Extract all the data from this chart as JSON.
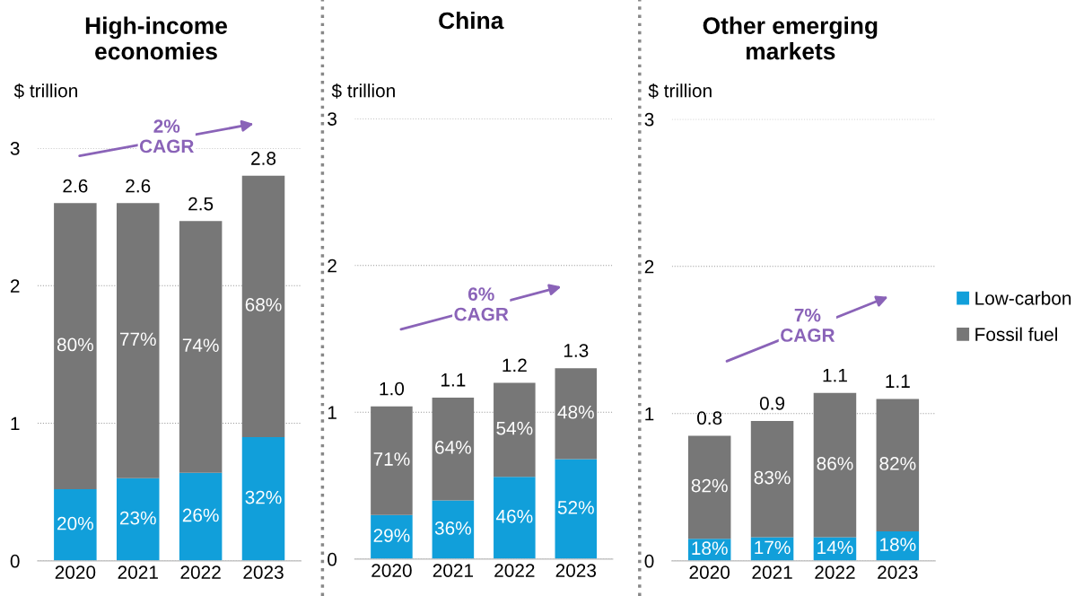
{
  "chart_data": [
    {
      "type": "bar",
      "title": "High-income\neconomies",
      "ylabel": "$ trillion",
      "categories": [
        "2020",
        "2021",
        "2022",
        "2023"
      ],
      "stacked": true,
      "ylim": [
        0,
        3
      ],
      "yticks": [
        0,
        1,
        2,
        3
      ],
      "grid": "y",
      "series": [
        {
          "color": "#119fda",
          "values": [
            0.52,
            0.6,
            0.64,
            0.9
          ]
        },
        {
          "color": "#777777",
          "values": [
            2.08,
            2.0,
            1.83,
            1.9
          ]
        }
      ],
      "totals": [
        "2.6",
        "2.6",
        "2.5",
        "2.8"
      ],
      "annotations": [
        "2%\nCAGR",
        "20%",
        "23%",
        "26%",
        "32%",
        "80%",
        "77%",
        "74%",
        "68%"
      ]
    },
    {
      "type": "bar",
      "title": "China",
      "ylabel": "$ trillion",
      "categories": [
        "2020",
        "2021",
        "2022",
        "2023"
      ],
      "stacked": true,
      "ylim": [
        0,
        3
      ],
      "yticks": [
        0,
        1,
        2,
        3
      ],
      "grid": "y",
      "series": [
        {
          "color": "#119fda",
          "values": [
            0.3,
            0.4,
            0.56,
            0.68
          ]
        },
        {
          "color": "#777777",
          "values": [
            0.74,
            0.7,
            0.64,
            0.62
          ]
        }
      ],
      "totals": [
        "1.0",
        "1.1",
        "1.2",
        "1.3"
      ],
      "annotations": [
        "6%\nCAGR",
        "29%",
        "36%",
        "46%",
        "52%",
        "71%",
        "64%",
        "54%",
        "48%"
      ]
    },
    {
      "type": "bar",
      "title": "Other emerging\nmarkets",
      "ylabel": "$ trillion",
      "categories": [
        "2020",
        "2021",
        "2022",
        "2023"
      ],
      "stacked": true,
      "ylim": [
        0,
        3
      ],
      "yticks": [
        0,
        1,
        2,
        3
      ],
      "grid": "y",
      "legend": "right",
      "series": [
        {
          "name": "Low-carbon",
          "color": "#119fda",
          "values": [
            0.15,
            0.16,
            0.16,
            0.2
          ]
        },
        {
          "name": "Fossil fuel",
          "color": "#777777",
          "values": [
            0.7,
            0.79,
            0.98,
            0.9
          ]
        }
      ],
      "totals": [
        "0.8",
        "0.9",
        "1.1",
        "1.1"
      ],
      "annotations": [
        "7%\nCAGR",
        "18%",
        "17%",
        "14%",
        "18%",
        "82%",
        "83%",
        "86%",
        "82%"
      ]
    }
  ]
}
